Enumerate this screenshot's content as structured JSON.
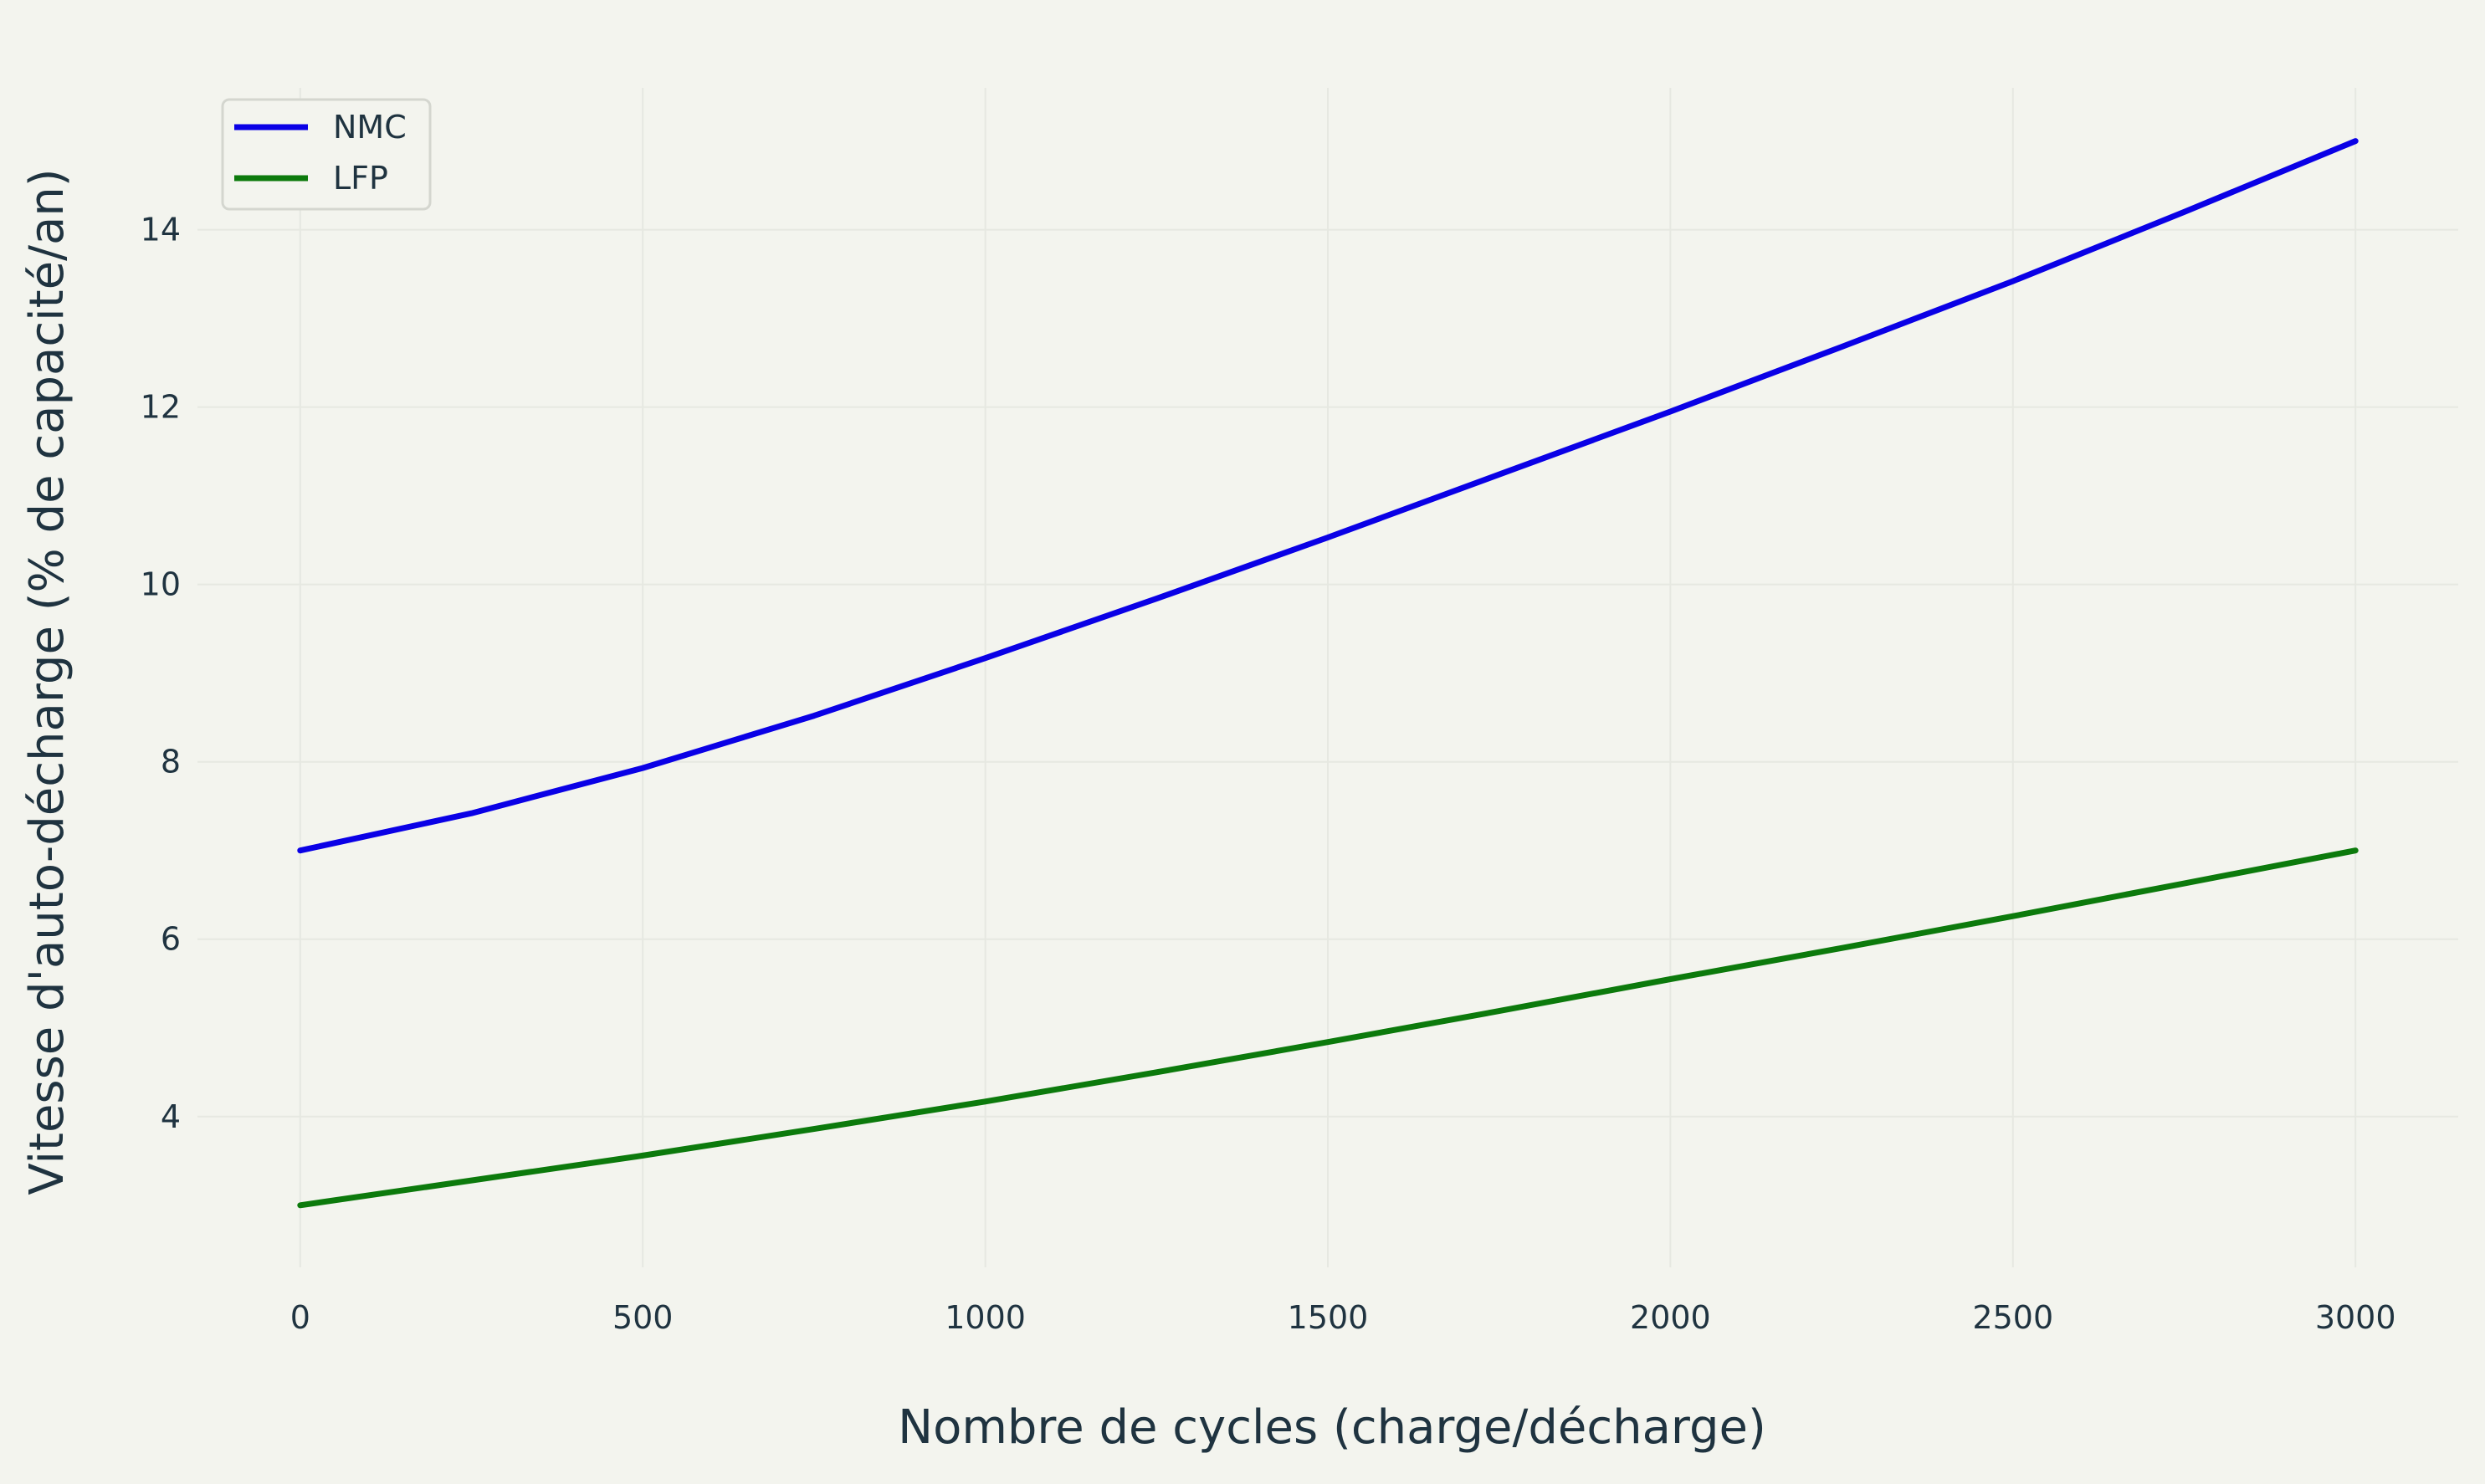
{
  "chart_data": {
    "type": "line",
    "title": "",
    "xlabel": "Nombre de cycles (charge/décharge)",
    "ylabel": "Vitesse d'auto-décharge (% de capacité/an)",
    "xlim": [
      -150,
      3150
    ],
    "ylim": [
      2.3,
      15.6
    ],
    "grid": true,
    "legend_position": "top-left",
    "x_ticks": [
      0,
      500,
      1000,
      1500,
      2000,
      2500,
      3000
    ],
    "x_tick_labels": [
      "0",
      "500",
      "1000",
      "1500",
      "2000",
      "2500",
      "3000"
    ],
    "y_ticks": [
      4,
      6,
      8,
      10,
      12,
      14
    ],
    "y_tick_labels": [
      "4",
      "6",
      "8",
      "10",
      "12",
      "14"
    ],
    "x": [
      0,
      250,
      500,
      750,
      1000,
      1250,
      1500,
      1750,
      2000,
      2250,
      2500,
      2750,
      3000
    ],
    "series": [
      {
        "name": "NMC",
        "color": "#0a00e6",
        "values": [
          7.0,
          7.42,
          7.93,
          8.52,
          9.17,
          9.84,
          10.53,
          11.24,
          11.95,
          12.68,
          13.42,
          14.2,
          15.0
        ]
      },
      {
        "name": "LFP",
        "color": "#0c7a0c",
        "values": [
          3.0,
          3.28,
          3.56,
          3.86,
          4.17,
          4.5,
          4.84,
          5.19,
          5.55,
          5.9,
          6.26,
          6.63,
          7.0
        ]
      }
    ]
  }
}
